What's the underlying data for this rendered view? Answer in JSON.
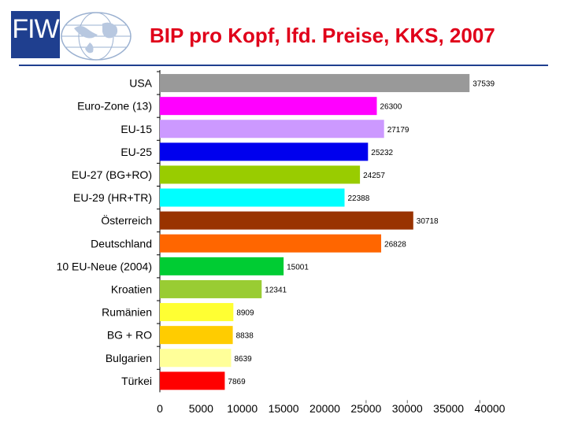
{
  "header": {
    "logo_text": "FIW",
    "title": "BIP pro Kopf, lfd. Preise, KKS, 2007"
  },
  "chart_data": {
    "type": "bar",
    "orientation": "horizontal",
    "title": "BIP pro Kopf, lfd. Preise, KKS, 2007",
    "xlabel": "",
    "ylabel": "",
    "xlim": [
      0,
      40000
    ],
    "x_ticks": [
      "0",
      "5000",
      "10000",
      "15000",
      "20000",
      "25000",
      "30000",
      "35000",
      "40000"
    ],
    "grid": false,
    "categories": [
      "USA",
      "Euro-Zone (13)",
      "EU-15",
      "EU-25",
      "EU-27 (BG+RO)",
      "EU-29 (HR+TR)",
      "Österreich",
      "Deutschland",
      "10 EU-Neue (2004)",
      "Kroatien",
      "Rumänien",
      "BG + RO",
      "Bulgarien",
      "Türkei"
    ],
    "values": [
      37539,
      26300,
      27179,
      25232,
      24257,
      22388,
      30718,
      26828,
      15001,
      12341,
      8909,
      8838,
      8639,
      7869
    ],
    "value_labels": [
      "37539",
      "26300",
      "27179",
      "25232",
      "24257",
      "22388",
      "30718",
      "26828",
      "15001",
      "12341",
      "8909",
      "8838",
      "8639",
      "7869"
    ],
    "colors": [
      "#999999",
      "#ff00ff",
      "#cc99ff",
      "#0000ee",
      "#99cc00",
      "#00ffff",
      "#993300",
      "#ff6600",
      "#00cc33",
      "#99cc33",
      "#ffff33",
      "#ffcc00",
      "#ffff99",
      "#ff0000"
    ]
  }
}
